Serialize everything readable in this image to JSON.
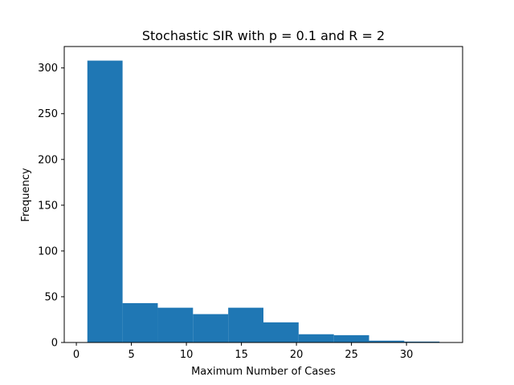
{
  "chart_data": {
    "type": "bar",
    "title": "Stochastic SIR with p = 0.1 and R = 2",
    "xlabel": "Maximum Number of Cases",
    "ylabel": "Frequency",
    "xlim": [
      -1.1,
      35.1
    ],
    "ylim": [
      0,
      323.4
    ],
    "xticks": [
      0,
      5,
      10,
      15,
      20,
      25,
      30
    ],
    "yticks": [
      0,
      50,
      100,
      150,
      200,
      250,
      300
    ],
    "bin_edges": [
      1.0,
      4.2,
      7.4,
      10.6,
      13.8,
      17.0,
      20.2,
      23.4,
      26.6,
      29.8,
      33.0
    ],
    "values": [
      308,
      43,
      38,
      31,
      38,
      22,
      9,
      8,
      2,
      1
    ],
    "bar_color": "#1f77b4",
    "grid": false,
    "legend": "none"
  }
}
